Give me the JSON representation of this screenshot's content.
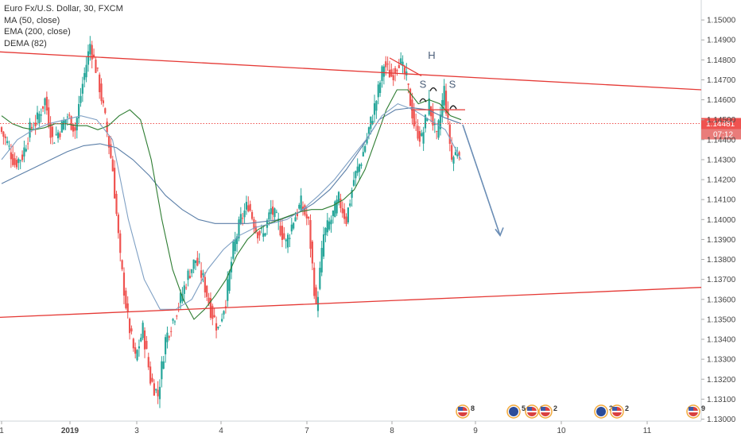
{
  "legend": {
    "title": "Euro Fx/U.S. Dollar, 30, FXCM",
    "ma": "MA (50, close)",
    "ema": "EMA (200, close)",
    "dema": "DEMA (82)"
  },
  "price_label": "1.14481",
  "countdown": "07:12",
  "annotations": {
    "head": "H",
    "shoulder_left": "S",
    "shoulder_right": "S"
  },
  "colors": {
    "up": "#26a69a",
    "down": "#ef5350",
    "ma": "#2e7d32",
    "ema": "#5b7fa8",
    "trend": "#e53935",
    "arrow": "#6a8db5",
    "badge": "#ef5350"
  },
  "events": [
    {
      "date": "8",
      "label": "8",
      "flag": "US"
    },
    {
      "date": "8.5",
      "label": "5",
      "flag": "EU"
    },
    {
      "date": "8.5",
      "label": "12",
      "flag": "US"
    },
    {
      "date": "8.5",
      "label": "2",
      "flag": "US"
    },
    {
      "date": "9.5",
      "label": "3",
      "flag": "EU"
    },
    {
      "date": "9.5",
      "label": "2",
      "flag": "US"
    },
    {
      "date": "11",
      "label": "9",
      "flag": "US"
    }
  ],
  "chart_data": {
    "type": "candlestick",
    "symbol": "Euro Fx/U.S. Dollar",
    "interval": "30",
    "source": "FXCM",
    "y_ticks": [
      "1.15000",
      "1.14900",
      "1.14800",
      "1.14700",
      "1.14600",
      "1.14500",
      "1.14400",
      "1.14300",
      "1.14200",
      "1.14100",
      "1.14000",
      "1.13900",
      "1.13800",
      "1.13700",
      "1.13600",
      "1.13500",
      "1.13400",
      "1.13300",
      "1.13200",
      "1.13100",
      "1.13000"
    ],
    "ylim": [
      1.1299,
      1.151
    ],
    "x_ticks": [
      "1",
      "2019",
      "3",
      "4",
      "7",
      "8",
      "9",
      "10",
      "11"
    ],
    "ohlc_path": [
      [
        1.1446,
        1.1434
      ],
      [
        1.1438,
        1.1425
      ],
      [
        1.1428,
        1.1418
      ],
      [
        1.1432,
        1.144
      ],
      [
        1.1445,
        1.1452
      ],
      [
        1.145,
        1.1465
      ],
      [
        1.146,
        1.1442
      ],
      [
        1.144,
        1.1448
      ],
      [
        1.1445,
        1.1455
      ],
      [
        1.1452,
        1.144
      ],
      [
        1.1445,
        1.147
      ],
      [
        1.1468,
        1.149
      ],
      [
        1.1488,
        1.147
      ],
      [
        1.1472,
        1.145
      ],
      [
        1.145,
        1.1425
      ],
      [
        1.1425,
        1.138
      ],
      [
        1.138,
        1.1345
      ],
      [
        1.135,
        1.133
      ],
      [
        1.133,
        1.1345
      ],
      [
        1.1345,
        1.132
      ],
      [
        1.132,
        1.131
      ],
      [
        1.1312,
        1.134
      ],
      [
        1.134,
        1.1352
      ],
      [
        1.135,
        1.1362
      ],
      [
        1.136,
        1.1375
      ],
      [
        1.1372,
        1.1385
      ],
      [
        1.138,
        1.1368
      ],
      [
        1.137,
        1.1355
      ],
      [
        1.1355,
        1.1345
      ],
      [
        1.1345,
        1.136
      ],
      [
        1.136,
        1.1385
      ],
      [
        1.1385,
        1.14
      ],
      [
        1.14,
        1.141
      ],
      [
        1.1408,
        1.1395
      ],
      [
        1.1395,
        1.1392
      ],
      [
        1.1392,
        1.1405
      ],
      [
        1.1405,
        1.1398
      ],
      [
        1.1398,
        1.1388
      ],
      [
        1.1388,
        1.14
      ],
      [
        1.14,
        1.141
      ],
      [
        1.1408,
        1.1398
      ],
      [
        1.1398,
        1.1355
      ],
      [
        1.1355,
        1.1392
      ],
      [
        1.1392,
        1.14
      ],
      [
        1.14,
        1.1412
      ],
      [
        1.141,
        1.1398
      ],
      [
        1.14,
        1.142
      ],
      [
        1.142,
        1.143
      ],
      [
        1.143,
        1.1445
      ],
      [
        1.1445,
        1.146
      ],
      [
        1.146,
        1.1478
      ],
      [
        1.1478,
        1.1472
      ],
      [
        1.1472,
        1.148
      ],
      [
        1.148,
        1.147
      ],
      [
        1.147,
        1.1448
      ],
      [
        1.1448,
        1.144
      ],
      [
        1.144,
        1.1458
      ],
      [
        1.1458,
        1.144
      ],
      [
        1.144,
        1.1465
      ],
      [
        1.1465,
        1.143
      ],
      [
        1.143,
        1.1436
      ],
      [
        1.1436,
        1.145
      ]
    ],
    "ma_50": [
      1.1452,
      1.1448,
      1.1446,
      1.1445,
      1.1446,
      1.1448,
      1.1448,
      1.1447,
      1.1447,
      1.1445,
      1.1447,
      1.1452,
      1.1455,
      1.145,
      1.143,
      1.14,
      1.1375,
      1.136,
      1.135,
      1.1355,
      1.1362,
      1.137,
      1.1382,
      1.139,
      1.1395,
      1.1398,
      1.14,
      1.1402,
      1.1404,
      1.1405,
      1.1405,
      1.1407,
      1.141,
      1.1415,
      1.1425,
      1.144,
      1.1455,
      1.1465,
      1.1465,
      1.1458,
      1.146,
      1.1458,
      1.1452,
      1.145
    ],
    "ema_200": [
      1.1418,
      1.1422,
      1.1426,
      1.143,
      1.1434,
      1.1437,
      1.1438,
      1.1436,
      1.143,
      1.1422,
      1.1412,
      1.1405,
      1.14,
      1.1398,
      1.1398,
      1.1398,
      1.1399,
      1.14,
      1.1403,
      1.1408,
      1.1415,
      1.1425,
      1.1437,
      1.145,
      1.1455,
      1.1456,
      1.1455,
      1.1451,
      1.1448
    ],
    "dema_82": [
      1.143,
      1.144,
      1.1445,
      1.1448,
      1.145,
      1.1452,
      1.145,
      1.144,
      1.14,
      1.137,
      1.1355,
      1.1355,
      1.136,
      1.1375,
      1.1385,
      1.1392,
      1.1396,
      1.1398,
      1.14,
      1.1405,
      1.1412,
      1.142,
      1.143,
      1.144,
      1.1452,
      1.1458,
      1.1455,
      1.145,
      1.1445,
      1.143
    ],
    "trendline_upper": [
      [
        1.1484,
        1.1465
      ]
    ],
    "trendline_lower": [
      [
        1.1351,
        1.1366
      ]
    ],
    "neckline": 1.1455,
    "current_price": 1.14481,
    "forecast_target": 1.1392
  }
}
